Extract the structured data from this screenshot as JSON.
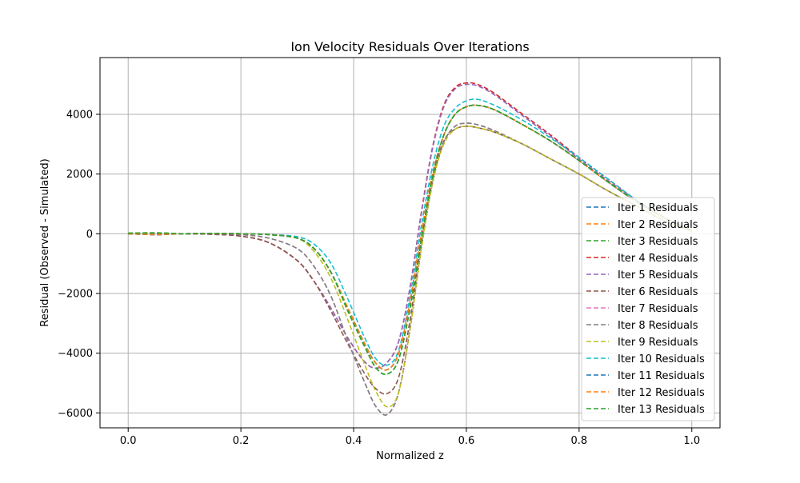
{
  "chart_data": {
    "type": "line",
    "title": "Ion Velocity Residuals Over Iterations",
    "xlabel": "Normalized z",
    "ylabel": "Residual (Observed - Simulated)",
    "xlim": [
      -0.05,
      1.05
    ],
    "ylim": [
      -6500,
      5900
    ],
    "xticks": [
      0.0,
      0.2,
      0.4,
      0.6,
      0.8,
      1.0
    ],
    "xtick_labels": [
      "0.0",
      "0.2",
      "0.4",
      "0.6",
      "0.8",
      "1.0"
    ],
    "yticks": [
      -6000,
      -4000,
      -2000,
      0,
      2000,
      4000
    ],
    "ytick_labels": [
      "−6000",
      "−4000",
      "−2000",
      "0",
      "2000",
      "4000"
    ],
    "grid": true,
    "line_style": "dashed",
    "legend_position": "lower-right",
    "x": [
      0.0,
      0.05,
      0.1,
      0.15,
      0.2,
      0.25,
      0.3,
      0.33,
      0.36,
      0.39,
      0.42,
      0.44,
      0.46,
      0.48,
      0.5,
      0.52,
      0.54,
      0.56,
      0.58,
      0.6,
      0.62,
      0.65,
      0.7,
      0.75,
      0.8,
      0.85,
      0.9,
      0.95,
      1.0
    ],
    "series": [
      {
        "name": "Iter 1 Residuals",
        "color": "#1f77b4",
        "values": [
          0,
          -20,
          0,
          10,
          0,
          -30,
          -150,
          -500,
          -1300,
          -2500,
          -3700,
          -4350,
          -4550,
          -4000,
          -2300,
          0,
          2000,
          3300,
          4000,
          4250,
          4300,
          4150,
          3650,
          3100,
          2450,
          1750,
          1100,
          550,
          100
        ]
      },
      {
        "name": "Iter 2 Residuals",
        "color": "#ff7f0e",
        "values": [
          0,
          -20,
          0,
          10,
          0,
          -30,
          -150,
          -500,
          -1300,
          -2500,
          -3700,
          -4350,
          -4550,
          -4000,
          -2300,
          0,
          2000,
          3300,
          4000,
          4250,
          4300,
          4150,
          3650,
          3100,
          2450,
          1750,
          1100,
          550,
          100
        ]
      },
      {
        "name": "Iter 3 Residuals",
        "color": "#2ca02c",
        "values": [
          20,
          30,
          0,
          10,
          0,
          -30,
          -150,
          -500,
          -1300,
          -2600,
          -3800,
          -4500,
          -4700,
          -4200,
          -2500,
          -200,
          1900,
          3300,
          4000,
          4250,
          4300,
          4150,
          3650,
          3100,
          2450,
          1750,
          1100,
          550,
          100
        ]
      },
      {
        "name": "Iter 4 Residuals",
        "color": "#d62728",
        "values": [
          0,
          -30,
          0,
          -20,
          -80,
          -300,
          -900,
          -1600,
          -2500,
          -3500,
          -4300,
          -4500,
          -4300,
          -3600,
          -1800,
          700,
          2900,
          4300,
          4900,
          5050,
          5000,
          4700,
          4000,
          3300,
          2550,
          1850,
          1150,
          550,
          100
        ]
      },
      {
        "name": "Iter 5 Residuals",
        "color": "#9467bd",
        "values": [
          0,
          -30,
          0,
          -20,
          -80,
          -300,
          -900,
          -1600,
          -2500,
          -3500,
          -4300,
          -4500,
          -4300,
          -3600,
          -1800,
          650,
          2850,
          4250,
          4850,
          5000,
          4950,
          4650,
          3950,
          3250,
          2500,
          1800,
          1150,
          550,
          100
        ]
      },
      {
        "name": "Iter 6 Residuals",
        "color": "#8c564b",
        "values": [
          0,
          -30,
          0,
          -20,
          -80,
          -300,
          -900,
          -1600,
          -2600,
          -3700,
          -4700,
          -5200,
          -5350,
          -4800,
          -2900,
          -300,
          1800,
          3100,
          3500,
          3600,
          3550,
          3400,
          3000,
          2500,
          2000,
          1450,
          950,
          450,
          80
        ]
      },
      {
        "name": "Iter 7 Residuals",
        "color": "#e377c2",
        "values": [
          0,
          -20,
          0,
          0,
          -30,
          -150,
          -500,
          -1100,
          -2100,
          -3600,
          -5000,
          -5800,
          -6050,
          -5300,
          -3200,
          -500,
          1700,
          3050,
          3600,
          3700,
          3650,
          3450,
          3000,
          2500,
          2000,
          1450,
          950,
          450,
          80
        ]
      },
      {
        "name": "Iter 8 Residuals",
        "color": "#7f7f7f",
        "values": [
          0,
          -20,
          0,
          0,
          -30,
          -150,
          -500,
          -1100,
          -2100,
          -3600,
          -5000,
          -5800,
          -6050,
          -5300,
          -3200,
          -500,
          1700,
          3050,
          3600,
          3700,
          3650,
          3450,
          3000,
          2500,
          2000,
          1450,
          950,
          450,
          80
        ]
      },
      {
        "name": "Iter 9 Residuals",
        "color": "#bcbd22",
        "values": [
          0,
          -20,
          0,
          10,
          0,
          -30,
          -150,
          -600,
          -1500,
          -2900,
          -4400,
          -5300,
          -5800,
          -5300,
          -3200,
          -500,
          1700,
          3000,
          3500,
          3600,
          3550,
          3400,
          3000,
          2500,
          2000,
          1450,
          950,
          450,
          80
        ]
      },
      {
        "name": "Iter 10 Residuals",
        "color": "#17becf",
        "values": [
          0,
          -20,
          0,
          10,
          0,
          -30,
          -100,
          -350,
          -1000,
          -2200,
          -3500,
          -4200,
          -4400,
          -3900,
          -2100,
          250,
          2250,
          3600,
          4200,
          4450,
          4500,
          4300,
          3800,
          3200,
          2550,
          1850,
          1150,
          550,
          100
        ]
      },
      {
        "name": "Iter 11 Residuals",
        "color": "#1f77b4",
        "values": [
          0,
          -20,
          0,
          10,
          0,
          -30,
          -150,
          -500,
          -1300,
          -2500,
          -3700,
          -4350,
          -4550,
          -4000,
          -2300,
          0,
          2000,
          3300,
          4000,
          4250,
          4300,
          4150,
          3650,
          3100,
          2450,
          1750,
          1100,
          550,
          100
        ]
      },
      {
        "name": "Iter 12 Residuals",
        "color": "#ff7f0e",
        "values": [
          0,
          -20,
          0,
          10,
          0,
          -30,
          -150,
          -500,
          -1300,
          -2500,
          -3700,
          -4350,
          -4550,
          -4000,
          -2300,
          0,
          2000,
          3300,
          4000,
          4250,
          4300,
          4150,
          3650,
          3100,
          2450,
          1750,
          1100,
          550,
          100
        ]
      },
      {
        "name": "Iter 13 Residuals",
        "color": "#2ca02c",
        "values": [
          20,
          30,
          0,
          10,
          0,
          -30,
          -150,
          -500,
          -1300,
          -2600,
          -3800,
          -4500,
          -4700,
          -4200,
          -2500,
          -200,
          1900,
          3300,
          4000,
          4250,
          4300,
          4150,
          3650,
          3100,
          2450,
          1750,
          1100,
          550,
          100
        ]
      }
    ]
  }
}
